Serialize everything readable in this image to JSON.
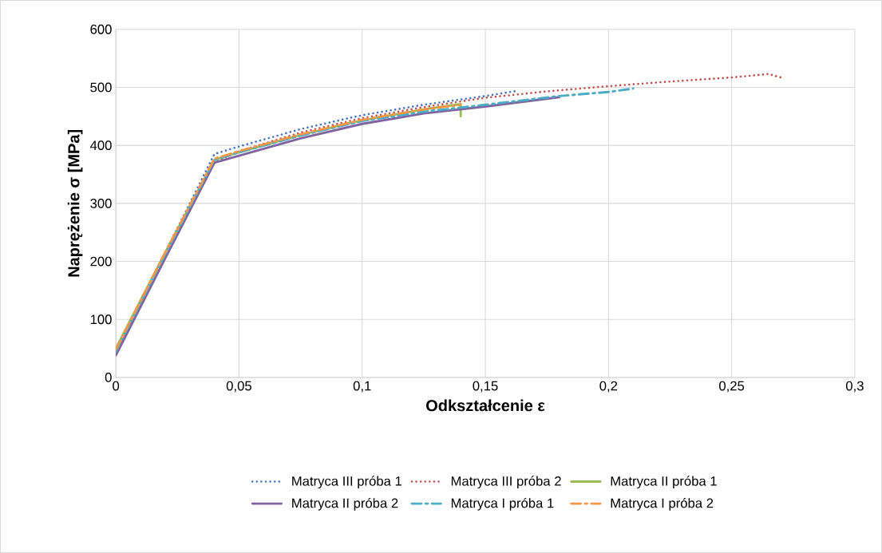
{
  "chart_data": {
    "type": "line",
    "xlabel": "Odkształcenie ε",
    "ylabel": "Naprężenie σ [MPa]",
    "xlim": [
      0,
      0.3
    ],
    "xticks": [
      0,
      {
        "value": 0.05,
        "label": "0,05"
      },
      {
        "value": 0.1,
        "label": "0,1"
      },
      {
        "value": 0.15,
        "label": "0,15"
      },
      {
        "value": 0.2,
        "label": "0,2"
      },
      {
        "value": 0.25,
        "label": "0,25"
      },
      {
        "value": 0.3,
        "label": "0,3"
      }
    ],
    "ylim": [
      0,
      600
    ],
    "yticks": [
      0,
      100,
      200,
      300,
      400,
      500,
      600
    ],
    "grid": true,
    "legend": "bottom",
    "series": [
      {
        "name": "Matryca III próba 1",
        "color": "#4472c4",
        "line_style": "dotted",
        "x": [
          0,
          0.02,
          0.04,
          0.05,
          0.075,
          0.1,
          0.125,
          0.15,
          0.163
        ],
        "values": [
          45,
          215,
          385,
          398,
          428,
          452,
          470,
          485,
          494
        ]
      },
      {
        "name": "Matryca III próba 2",
        "color": "#c0504d",
        "line_style": "dotted",
        "x": [
          0,
          0.02,
          0.04,
          0.05,
          0.075,
          0.1,
          0.125,
          0.15,
          0.175,
          0.2,
          0.225,
          0.25,
          0.265,
          0.27
        ],
        "values": [
          40,
          205,
          370,
          390,
          422,
          447,
          466,
          482,
          493,
          502,
          510,
          517,
          523,
          517
        ]
      },
      {
        "name": "Matryca II próba 1",
        "color": "#9bbb59",
        "line_style": "solid",
        "x": [
          0,
          0.02,
          0.04,
          0.05,
          0.075,
          0.1,
          0.125,
          0.14,
          0.14
        ],
        "values": [
          50,
          215,
          375,
          388,
          418,
          443,
          462,
          471,
          450
        ]
      },
      {
        "name": "Matryca II próba 2",
        "color": "#8064a2",
        "line_style": "solid",
        "x": [
          0,
          0.02,
          0.04,
          0.05,
          0.075,
          0.1,
          0.125,
          0.15,
          0.18
        ],
        "values": [
          38,
          205,
          370,
          382,
          412,
          437,
          455,
          467,
          483
        ]
      },
      {
        "name": "Matryca I próba 1",
        "color": "#4bacc6",
        "line_style": "dashdot",
        "x": [
          0,
          0.02,
          0.04,
          0.05,
          0.075,
          0.1,
          0.125,
          0.15,
          0.18,
          0.2,
          0.21
        ],
        "values": [
          45,
          212,
          375,
          388,
          417,
          442,
          458,
          470,
          485,
          492,
          498
        ]
      },
      {
        "name": "Matryca I próba 2",
        "color": "#f79646",
        "line_style": "dashdot",
        "x": [
          0,
          0.02,
          0.04,
          0.05,
          0.075,
          0.1,
          0.125,
          0.14
        ],
        "values": [
          48,
          215,
          377,
          390,
          419,
          444,
          462,
          470
        ]
      }
    ]
  }
}
